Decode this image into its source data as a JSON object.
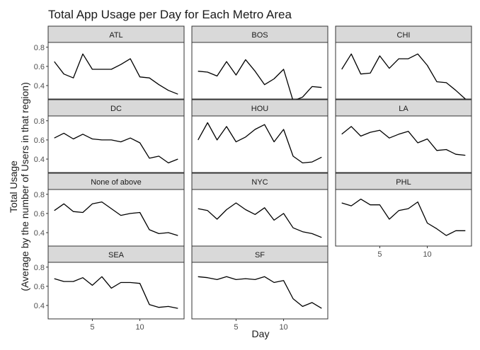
{
  "chart_data": {
    "type": "line",
    "title": "Total App Usage per Day for Each Metro Area",
    "xlabel": "Day",
    "ylabel_line1": "Total Usage",
    "ylabel_line2": "(Average by the number of Users in that region)",
    "x": [
      1,
      2,
      3,
      4,
      5,
      6,
      7,
      8,
      9,
      10,
      11,
      12,
      13,
      14
    ],
    "xlim": [
      0.35,
      14.65
    ],
    "ylim": [
      0.26,
      0.85
    ],
    "x_ticks": [
      5,
      10
    ],
    "y_ticks": [
      0.4,
      0.6,
      0.8
    ],
    "y_tick_labels": [
      "0.4",
      "0.6",
      "0.8"
    ],
    "x_tick_labels": [
      "5",
      "10"
    ],
    "grid": false,
    "layout": "facet_wrap_3_columns",
    "colors": {
      "line": "#000000",
      "strip_fill": "#d9d9d9",
      "panel_border": "#333333",
      "tick_label": "#4d4d4d"
    },
    "series": [
      {
        "name": "ATL",
        "values": [
          0.65,
          0.52,
          0.48,
          0.73,
          0.57,
          0.57,
          0.57,
          0.62,
          0.68,
          0.49,
          0.48,
          0.41,
          0.35,
          0.31
        ]
      },
      {
        "name": "BOS",
        "values": [
          0.55,
          0.54,
          0.5,
          0.65,
          0.51,
          0.67,
          0.55,
          0.41,
          0.47,
          0.57,
          0.24,
          0.28,
          0.39,
          0.38
        ]
      },
      {
        "name": "CHI",
        "values": [
          0.57,
          0.73,
          0.52,
          0.53,
          0.71,
          0.58,
          0.68,
          0.68,
          0.73,
          0.61,
          0.44,
          0.43,
          0.35,
          0.26
        ]
      },
      {
        "name": "DC",
        "values": [
          0.62,
          0.67,
          0.61,
          0.66,
          0.61,
          0.6,
          0.6,
          0.58,
          0.62,
          0.57,
          0.41,
          0.43,
          0.36,
          0.4
        ]
      },
      {
        "name": "HOU",
        "values": [
          0.6,
          0.78,
          0.6,
          0.74,
          0.58,
          0.63,
          0.71,
          0.76,
          0.58,
          0.71,
          0.43,
          0.36,
          0.37,
          0.42
        ]
      },
      {
        "name": "LA",
        "values": [
          0.66,
          0.74,
          0.64,
          0.68,
          0.7,
          0.62,
          0.66,
          0.69,
          0.57,
          0.61,
          0.49,
          0.5,
          0.45,
          0.44
        ]
      },
      {
        "name": "None of above",
        "values": [
          0.63,
          0.7,
          0.62,
          0.61,
          0.7,
          0.72,
          0.65,
          0.58,
          0.6,
          0.61,
          0.43,
          0.39,
          0.4,
          0.37
        ]
      },
      {
        "name": "NYC",
        "values": [
          0.65,
          0.63,
          0.54,
          0.64,
          0.71,
          0.64,
          0.59,
          0.66,
          0.53,
          0.6,
          0.45,
          0.41,
          0.39,
          0.35
        ]
      },
      {
        "name": "PHL",
        "values": [
          0.71,
          0.68,
          0.75,
          0.69,
          0.69,
          0.54,
          0.63,
          0.65,
          0.72,
          0.5,
          0.44,
          0.37,
          0.42,
          0.42
        ]
      },
      {
        "name": "SEA",
        "values": [
          0.68,
          0.65,
          0.65,
          0.69,
          0.61,
          0.7,
          0.58,
          0.64,
          0.64,
          0.63,
          0.41,
          0.38,
          0.39,
          0.37
        ]
      },
      {
        "name": "SF",
        "values": [
          0.7,
          0.69,
          0.67,
          0.7,
          0.67,
          0.68,
          0.67,
          0.7,
          0.64,
          0.66,
          0.47,
          0.39,
          0.43,
          0.37
        ]
      }
    ]
  }
}
